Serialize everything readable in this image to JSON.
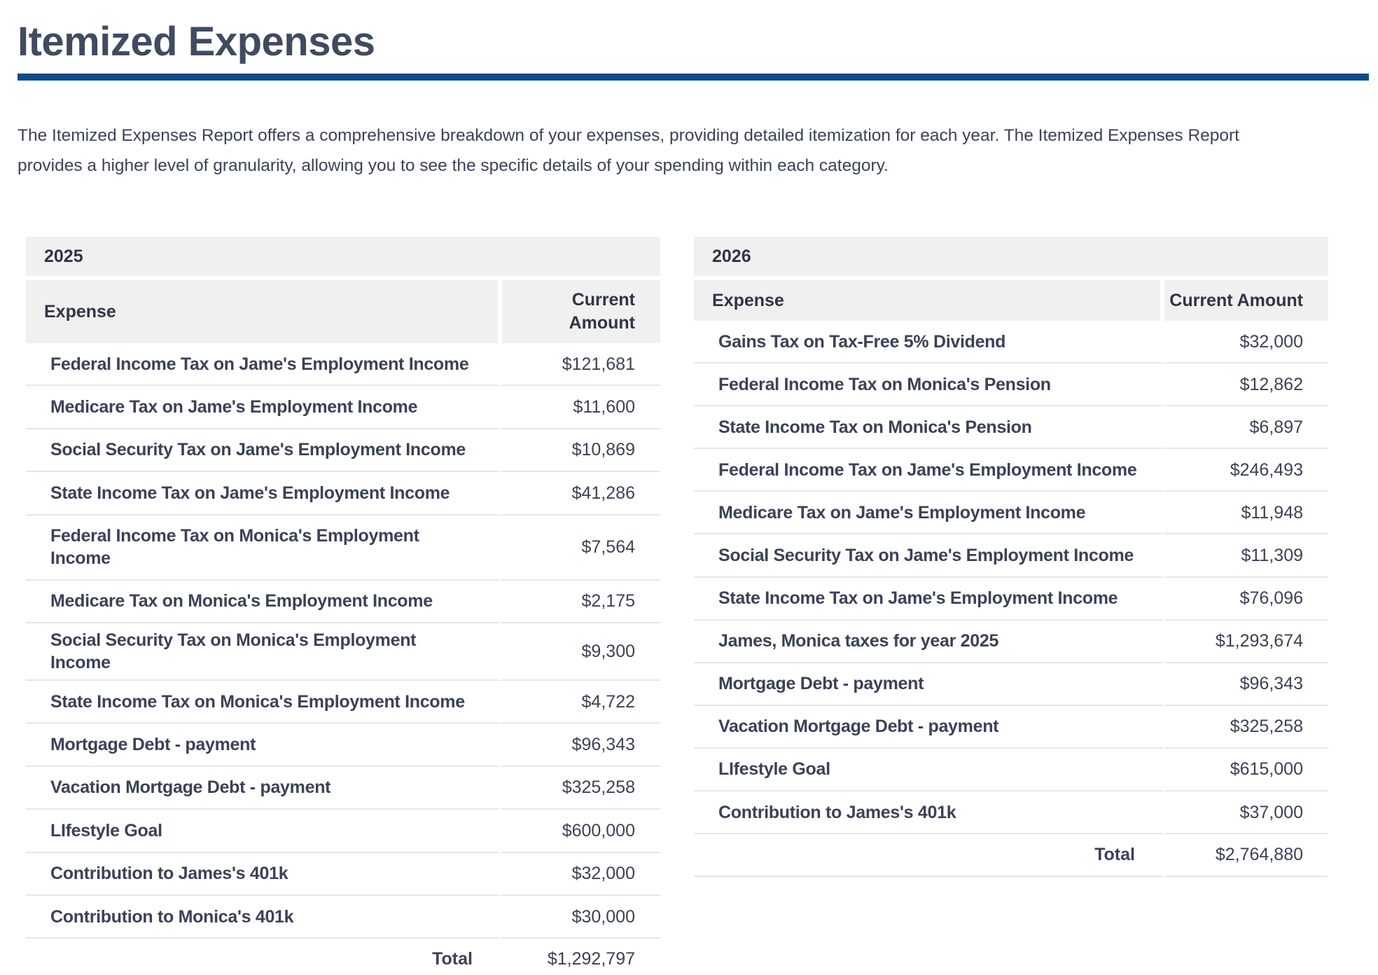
{
  "page": {
    "title": "Itemized Expenses",
    "description": "The Itemized Expenses Report offers a comprehensive breakdown of your expenses, providing detailed itemization for each year. The Itemized Expenses Report provides a higher level of granularity, allowing you to see the specific details of your spending within each category."
  },
  "colors": {
    "title_rule": "#0d4c8c",
    "header_background": "#f0f0f0",
    "text": "#3b4256"
  },
  "tables": [
    {
      "year": "2025",
      "columns": {
        "expense": "Expense",
        "amount": "Current Amount"
      },
      "rows": [
        {
          "expense": "Federal Income Tax on Jame's Employment Income",
          "amount": "$121,681"
        },
        {
          "expense": "Medicare Tax on Jame's Employment Income",
          "amount": "$11,600"
        },
        {
          "expense": "Social Security Tax on Jame's Employment Income",
          "amount": "$10,869"
        },
        {
          "expense": "State Income Tax on Jame's Employment Income",
          "amount": "$41,286"
        },
        {
          "expense": "Federal Income Tax on Monica's Employment Income",
          "amount": "$7,564"
        },
        {
          "expense": "Medicare Tax on Monica's Employment Income",
          "amount": "$2,175"
        },
        {
          "expense": "Social Security Tax on Monica's Employment Income",
          "amount": "$9,300"
        },
        {
          "expense": "State Income Tax on Monica's Employment Income",
          "amount": "$4,722"
        },
        {
          "expense": "Mortgage Debt - payment",
          "amount": "$96,343"
        },
        {
          "expense": "Vacation Mortgage Debt - payment",
          "amount": "$325,258"
        },
        {
          "expense": "LIfestyle Goal",
          "amount": "$600,000"
        },
        {
          "expense": "Contribution to James's 401k",
          "amount": "$32,000"
        },
        {
          "expense": "Contribution to Monica's 401k",
          "amount": "$30,000"
        }
      ],
      "total_label": "Total",
      "total_value": "$1,292,797"
    },
    {
      "year": "2026",
      "columns": {
        "expense": "Expense",
        "amount": "Current Amount"
      },
      "rows": [
        {
          "expense": "Gains Tax on Tax-Free 5% Dividend",
          "amount": "$32,000"
        },
        {
          "expense": "Federal Income Tax on Monica's Pension",
          "amount": "$12,862"
        },
        {
          "expense": "State Income Tax on Monica's Pension",
          "amount": "$6,897"
        },
        {
          "expense": "Federal Income Tax on Jame's Employment Income",
          "amount": "$246,493"
        },
        {
          "expense": "Medicare Tax on Jame's Employment Income",
          "amount": "$11,948"
        },
        {
          "expense": "Social Security Tax on Jame's Employment Income",
          "amount": "$11,309"
        },
        {
          "expense": "State Income Tax on Jame's Employment Income",
          "amount": "$76,096"
        },
        {
          "expense": "James, Monica taxes for year 2025",
          "amount": "$1,293,674"
        },
        {
          "expense": "Mortgage Debt - payment",
          "amount": "$96,343"
        },
        {
          "expense": "Vacation Mortgage Debt - payment",
          "amount": "$325,258"
        },
        {
          "expense": "LIfestyle Goal",
          "amount": "$615,000"
        },
        {
          "expense": "Contribution to James's 401k",
          "amount": "$37,000"
        }
      ],
      "total_label": "Total",
      "total_value": "$2,764,880"
    }
  ]
}
